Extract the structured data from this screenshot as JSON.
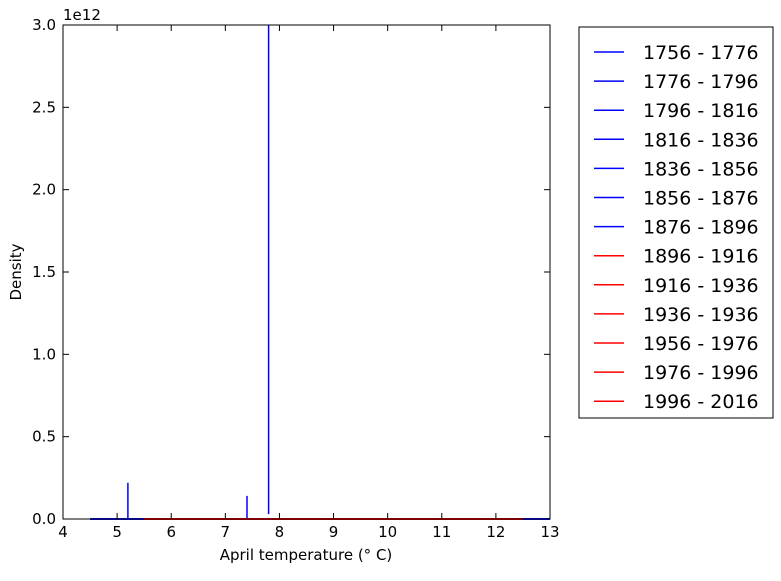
{
  "chart_data": {
    "type": "line",
    "xlabel": "April temperature (° C)",
    "ylabel": "Density",
    "offset_text": "1e12",
    "xlim": [
      4,
      13
    ],
    "ylim": [
      0,
      3.0
    ],
    "y_scale_multiplier": 1000000000000.0,
    "x_ticks": [
      4,
      5,
      6,
      7,
      8,
      9,
      10,
      11,
      12,
      13
    ],
    "x_tick_labels": [
      "4",
      "5",
      "6",
      "7",
      "8",
      "9",
      "10",
      "11",
      "12",
      "13"
    ],
    "y_ticks": [
      0,
      0.5,
      1.0,
      1.5,
      2.0,
      2.5,
      3.0
    ],
    "y_tick_labels": [
      "0.0",
      "0.5",
      "1.0",
      "1.5",
      "2.0",
      "2.5",
      "3.0"
    ],
    "grid": false,
    "legend_position": "outside-right",
    "colors": {
      "early": "#0000ff",
      "late": "#ff0000"
    },
    "series": [
      {
        "name": "1756 - 1776",
        "color": "#0000ff",
        "x": [
          5.2,
          5.2
        ],
        "y": [
          0,
          0.22
        ]
      },
      {
        "name": "1776 - 1796",
        "color": "#0000ff",
        "x": [
          7.4,
          7.4
        ],
        "y": [
          0,
          0.14
        ]
      },
      {
        "name": "1796 - 1816",
        "color": "#0000ff",
        "x": [
          7.8,
          7.8
        ],
        "y": [
          0.03,
          3.0
        ]
      },
      {
        "name": "1816 - 1836",
        "color": "#0000ff",
        "x": [
          4.5,
          13.0
        ],
        "y": [
          0,
          0
        ]
      },
      {
        "name": "1836 - 1856",
        "color": "#0000ff",
        "x": [
          4.5,
          13.0
        ],
        "y": [
          0,
          0
        ]
      },
      {
        "name": "1856 - 1876",
        "color": "#0000ff",
        "x": [
          4.5,
          13.0
        ],
        "y": [
          0,
          0
        ]
      },
      {
        "name": "1876 - 1896",
        "color": "#0000ff",
        "x": [
          4.5,
          13.0
        ],
        "y": [
          0,
          0
        ]
      },
      {
        "name": "1896 - 1916",
        "color": "#ff0000",
        "x": [
          5.5,
          12.5
        ],
        "y": [
          0,
          0
        ]
      },
      {
        "name": "1916 - 1936",
        "color": "#ff0000",
        "x": [
          5.5,
          12.5
        ],
        "y": [
          0,
          0
        ]
      },
      {
        "name": "1936 - 1936",
        "color": "#ff0000",
        "x": [
          5.5,
          12.5
        ],
        "y": [
          0,
          0
        ]
      },
      {
        "name": "1956 - 1976",
        "color": "#ff0000",
        "x": [
          5.5,
          12.5
        ],
        "y": [
          0,
          0
        ]
      },
      {
        "name": "1976 - 1996",
        "color": "#ff0000",
        "x": [
          5.5,
          12.5
        ],
        "y": [
          0,
          0
        ]
      },
      {
        "name": "1996 - 2016",
        "color": "#ff0000",
        "x": [
          5.5,
          12.5
        ],
        "y": [
          0,
          0
        ]
      }
    ]
  }
}
